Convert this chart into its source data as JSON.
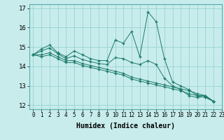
{
  "title": "",
  "xlabel": "Humidex (Indice chaleur)",
  "ylabel": "",
  "bg_color": "#c8ecec",
  "grid_color": "#8ecece",
  "line_color": "#1a7a6a",
  "marker": "+",
  "xlim": [
    -0.5,
    23
  ],
  "ylim": [
    11.8,
    17.2
  ],
  "yticks": [
    12,
    13,
    14,
    15,
    16,
    17
  ],
  "xticks": [
    0,
    1,
    2,
    3,
    4,
    5,
    6,
    7,
    8,
    9,
    10,
    11,
    12,
    13,
    14,
    15,
    16,
    17,
    18,
    19,
    20,
    21,
    22,
    23
  ],
  "lines": [
    [
      14.6,
      14.9,
      15.1,
      14.7,
      14.5,
      14.8,
      14.6,
      14.4,
      14.3,
      14.3,
      15.35,
      15.2,
      15.8,
      14.5,
      16.8,
      16.3,
      14.4,
      13.2,
      13.0,
      12.8,
      12.5,
      12.5,
      12.2
    ],
    [
      14.6,
      14.8,
      14.95,
      14.65,
      14.4,
      14.55,
      14.35,
      14.25,
      14.15,
      14.1,
      14.45,
      14.4,
      14.2,
      14.1,
      14.3,
      14.1,
      13.4,
      13.0,
      12.8,
      12.5,
      12.4,
      12.45,
      12.2
    ],
    [
      14.6,
      14.6,
      14.7,
      14.5,
      14.3,
      14.3,
      14.15,
      14.05,
      13.95,
      13.85,
      13.75,
      13.65,
      13.45,
      13.35,
      13.25,
      13.15,
      13.05,
      12.95,
      12.85,
      12.75,
      12.6,
      12.5,
      12.2
    ],
    [
      14.6,
      14.5,
      14.6,
      14.4,
      14.2,
      14.2,
      14.05,
      13.95,
      13.85,
      13.75,
      13.65,
      13.55,
      13.35,
      13.25,
      13.15,
      13.05,
      12.95,
      12.85,
      12.75,
      12.6,
      12.5,
      12.4,
      12.2
    ]
  ]
}
